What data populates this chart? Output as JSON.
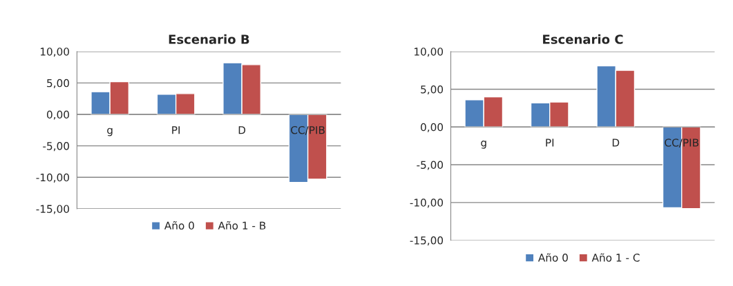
{
  "chart_data": [
    {
      "type": "bar",
      "title": "Escenario B",
      "categories": [
        "g",
        "PI",
        "D",
        "CC/PIB"
      ],
      "series": [
        {
          "name": "Año 0",
          "color": "#4f81bd",
          "values": [
            3.6,
            3.2,
            8.2,
            -10.8
          ]
        },
        {
          "name": "Año 1 - B",
          "color": "#c0504d",
          "values": [
            5.2,
            3.3,
            7.9,
            -10.3
          ]
        }
      ],
      "ylim": [
        -15,
        10
      ],
      "yticks": [
        {
          "value": -15,
          "label": "-15,00"
        },
        {
          "value": -10,
          "label": "-10,00"
        },
        {
          "value": -5,
          "label": "-5,00"
        },
        {
          "value": 0,
          "label": "0,00"
        },
        {
          "value": 5,
          "label": "5,00"
        },
        {
          "value": 10,
          "label": "10,00"
        }
      ],
      "grid": "y",
      "legend": "bottom"
    },
    {
      "type": "bar",
      "title": "Escenario C",
      "categories": [
        "g",
        "PI",
        "D",
        "CC/PIB"
      ],
      "series": [
        {
          "name": "Año 0",
          "color": "#4f81bd",
          "values": [
            3.6,
            3.2,
            8.1,
            -10.7
          ]
        },
        {
          "name": "Año 1 - C",
          "color": "#c0504d",
          "values": [
            4.0,
            3.3,
            7.5,
            -10.8
          ]
        }
      ],
      "ylim": [
        -15,
        10
      ],
      "yticks": [
        {
          "value": -15,
          "label": "-15,00"
        },
        {
          "value": -10,
          "label": "-10,00"
        },
        {
          "value": -5,
          "label": "-5,00"
        },
        {
          "value": 0,
          "label": "0,00"
        },
        {
          "value": 5,
          "label": "5,00"
        },
        {
          "value": 10,
          "label": "10,00"
        }
      ],
      "grid": "y",
      "legend": "bottom"
    }
  ]
}
